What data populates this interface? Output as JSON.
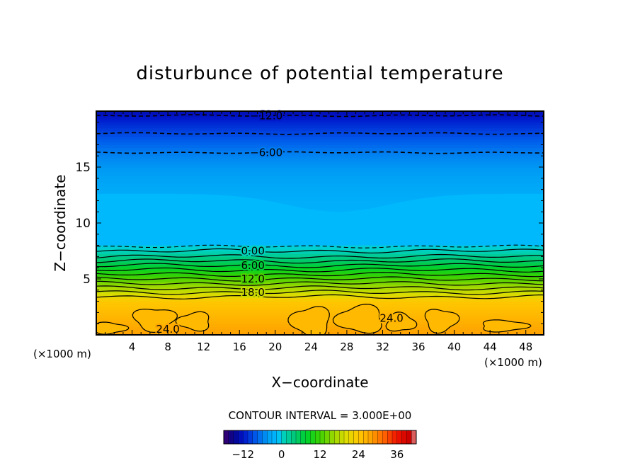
{
  "chart_data": {
    "type": "heatmap",
    "title": "disturbunce of potential temperature",
    "xlabel": "X−coordinate",
    "ylabel": "Z−coordinate",
    "x_unit_left": "(×1000 m)",
    "x_unit_right": "(×1000 m)",
    "xlim": [
      0,
      50
    ],
    "ylim": [
      0,
      20
    ],
    "x_ticks": [
      "4",
      "8",
      "12",
      "16",
      "20",
      "24",
      "28",
      "32",
      "36",
      "40",
      "44",
      "48"
    ],
    "y_ticks": [
      "5",
      "10",
      "15"
    ],
    "contour_interval_label": "CONTOUR INTERVAL = 3.000E+00",
    "contour_labels": [
      {
        "text": "−12.0",
        "x": 19,
        "z": 19.6,
        "dashed": true
      },
      {
        "text": "−6.00",
        "x": 19,
        "z": 16.3,
        "dashed": true
      },
      {
        "text": "0.00",
        "x": 17.5,
        "z": 7.5,
        "dashed": false
      },
      {
        "text": "6.00",
        "x": 17.5,
        "z": 6.2,
        "dashed": false
      },
      {
        "text": "12.0",
        "x": 17.5,
        "z": 5.0,
        "dashed": false
      },
      {
        "text": "18.0",
        "x": 17.5,
        "z": 3.8,
        "dashed": false
      },
      {
        "text": "24.0",
        "x": 8,
        "z": 0.5,
        "dashed": false
      },
      {
        "text": "24.0",
        "x": 33,
        "z": 1.5,
        "dashed": false
      }
    ],
    "field_profile": [
      {
        "z": 0.0,
        "value": 28
      },
      {
        "z": 3.0,
        "value": 24
      },
      {
        "z": 3.6,
        "value": 20
      },
      {
        "z": 4.6,
        "value": 15
      },
      {
        "z": 5.6,
        "value": 10
      },
      {
        "z": 6.6,
        "value": 5
      },
      {
        "z": 7.6,
        "value": 0
      },
      {
        "z": 10.0,
        "value": -2
      },
      {
        "z": 13.0,
        "value": -3
      },
      {
        "z": 15.0,
        "value": -4.5
      },
      {
        "z": 16.3,
        "value": -6
      },
      {
        "z": 18.0,
        "value": -9
      },
      {
        "z": 19.5,
        "value": -12
      },
      {
        "z": 20.0,
        "value": -13
      }
    ],
    "colorbar": {
      "range": [
        -18,
        42
      ],
      "ticks": [
        "−12",
        "0",
        "12",
        "24",
        "36"
      ],
      "tick_values": [
        -12,
        0,
        12,
        24,
        36
      ]
    }
  }
}
